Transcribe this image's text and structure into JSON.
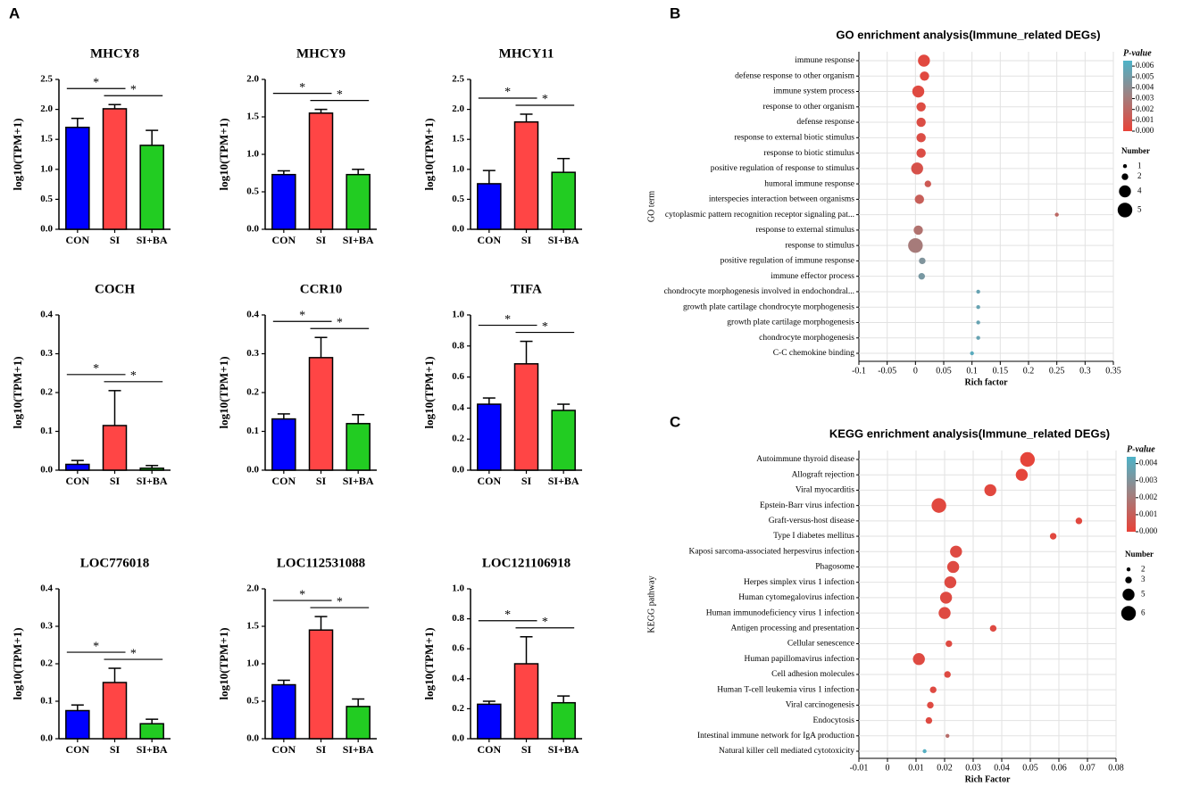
{
  "panel_labels": [
    "A",
    "B",
    "C"
  ],
  "chart_data": [
    {
      "type": "bar",
      "title": "MHCY8",
      "ylabel": "log10(TPM+1)",
      "categories": [
        "CON",
        "SI",
        "SI+BA"
      ],
      "values": [
        1.7,
        2.01,
        1.4
      ],
      "errors": [
        0.15,
        0.07,
        0.25
      ],
      "colors": [
        "#0000ff",
        "#ff4545",
        "#22cc22"
      ],
      "ylim": [
        0,
        2.5
      ],
      "yticks": [
        {
          "value": 0,
          "label": "0.0"
        },
        0.5,
        {
          "value": 1,
          "label": "1.0"
        },
        1.5,
        {
          "value": 2,
          "label": "2.0"
        },
        2.5
      ],
      "annotations": [
        "*",
        "*"
      ]
    },
    {
      "type": "bar",
      "title": "MHCY9",
      "ylabel": "log10(TPM+1)",
      "categories": [
        "CON",
        "SI",
        "SI+BA"
      ],
      "values": [
        0.73,
        1.55,
        0.73
      ],
      "errors": [
        0.05,
        0.05,
        0.07
      ],
      "colors": [
        "#0000ff",
        "#ff4545",
        "#22cc22"
      ],
      "ylim": [
        0,
        2
      ],
      "yticks": [
        {
          "value": 0,
          "label": "0.0"
        },
        0.5,
        {
          "value": 1,
          "label": "1.0"
        },
        1.5,
        {
          "value": 2,
          "label": "2.0"
        }
      ],
      "annotations": [
        "*",
        "*"
      ]
    },
    {
      "type": "bar",
      "title": "MHCY11",
      "ylabel": "log10(TPM+1)",
      "categories": [
        "CON",
        "SI",
        "SI+BA"
      ],
      "values": [
        0.76,
        1.79,
        0.95
      ],
      "errors": [
        0.22,
        0.13,
        0.23
      ],
      "colors": [
        "#0000ff",
        "#ff4545",
        "#22cc22"
      ],
      "ylim": [
        0,
        2.5
      ],
      "yticks": [
        {
          "value": 0,
          "label": "0.0"
        },
        0.5,
        {
          "value": 1,
          "label": "1.0"
        },
        1.5,
        {
          "value": 2,
          "label": "2.0"
        },
        2.5
      ],
      "annotations": [
        "*",
        "*"
      ]
    },
    {
      "type": "bar",
      "title": "COCH",
      "ylabel": "log10(TPM+1)",
      "categories": [
        "CON",
        "SI",
        "SI+BA"
      ],
      "values": [
        0.015,
        0.115,
        0.005
      ],
      "errors": [
        0.01,
        0.09,
        0.007
      ],
      "colors": [
        "#0000ff",
        "#ff4545",
        "#22cc22"
      ],
      "ylim": [
        0,
        0.4
      ],
      "yticks": [
        {
          "value": 0,
          "label": "0.0"
        },
        0.1,
        0.2,
        0.3,
        0.4
      ],
      "annotations": [
        "*",
        "*"
      ]
    },
    {
      "type": "bar",
      "title": "CCR10",
      "ylabel": "log10(TPM+1)",
      "categories": [
        "CON",
        "SI",
        "SI+BA"
      ],
      "values": [
        0.132,
        0.29,
        0.12
      ],
      "errors": [
        0.013,
        0.052,
        0.023
      ],
      "colors": [
        "#0000ff",
        "#ff4545",
        "#22cc22"
      ],
      "ylim": [
        0,
        0.4
      ],
      "yticks": [
        {
          "value": 0,
          "label": "0.0"
        },
        0.1,
        0.2,
        0.3,
        0.4
      ],
      "annotations": [
        "*",
        "*"
      ]
    },
    {
      "type": "bar",
      "title": "TIFA",
      "ylabel": "log10(TPM+1)",
      "categories": [
        "CON",
        "SI",
        "SI+BA"
      ],
      "values": [
        0.425,
        0.685,
        0.385
      ],
      "errors": [
        0.04,
        0.145,
        0.04
      ],
      "colors": [
        "#0000ff",
        "#ff4545",
        "#22cc22"
      ],
      "ylim": [
        0,
        1
      ],
      "yticks": [
        {
          "value": 0,
          "label": "0.0"
        },
        0.2,
        0.4,
        0.6,
        0.8,
        {
          "value": 1,
          "label": "1.0"
        }
      ],
      "annotations": [
        "*",
        "*"
      ]
    },
    {
      "type": "bar",
      "title": "LOC776018",
      "ylabel": "log10(TPM+1)",
      "categories": [
        "CON",
        "SI",
        "SI+BA"
      ],
      "values": [
        0.075,
        0.15,
        0.04
      ],
      "errors": [
        0.015,
        0.038,
        0.012
      ],
      "colors": [
        "#0000ff",
        "#ff4545",
        "#22cc22"
      ],
      "ylim": [
        0,
        0.4
      ],
      "yticks": [
        {
          "value": 0,
          "label": "0.0"
        },
        0.1,
        0.2,
        0.3,
        0.4
      ],
      "annotations": [
        "*",
        "*"
      ]
    },
    {
      "type": "bar",
      "title": "LOC112531088",
      "ylabel": "log10(TPM+1)",
      "categories": [
        "CON",
        "SI",
        "SI+BA"
      ],
      "values": [
        0.72,
        1.45,
        0.43
      ],
      "errors": [
        0.06,
        0.18,
        0.1
      ],
      "colors": [
        "#0000ff",
        "#ff4545",
        "#22cc22"
      ],
      "ylim": [
        0,
        2
      ],
      "yticks": [
        {
          "value": 0,
          "label": "0.0"
        },
        0.5,
        {
          "value": 1,
          "label": "1.0"
        },
        1.5,
        {
          "value": 2,
          "label": "2.0"
        }
      ],
      "annotations": [
        "*",
        "*"
      ]
    },
    {
      "type": "bar",
      "title": "LOC121106918",
      "ylabel": "log10(TPM+1)",
      "categories": [
        "CON",
        "SI",
        "SI+BA"
      ],
      "values": [
        0.23,
        0.5,
        0.24
      ],
      "errors": [
        0.02,
        0.18,
        0.045
      ],
      "colors": [
        "#0000ff",
        "#ff4545",
        "#22cc22"
      ],
      "ylim": [
        0,
        1
      ],
      "yticks": [
        {
          "value": 0,
          "label": "0.0"
        },
        0.2,
        0.4,
        0.6,
        0.8,
        {
          "value": 1,
          "label": "1.0"
        }
      ],
      "annotations": [
        "*",
        "*"
      ]
    },
    {
      "type": "bubble",
      "title": "GO enrichment analysis(Immune_related DEGs)",
      "xlabel": "Rich factor",
      "ylabel": "GO term",
      "grid": true,
      "categories": [
        "immune response",
        "defense response to other organism",
        "immune system process",
        "response to other organism",
        "defense response",
        "response to external biotic stimulus",
        "response to biotic stimulus",
        "positive regulation of response to stimulus",
        "humoral immune response",
        "interspecies interaction between organisms",
        "cytoplasmic pattern recognition receptor signaling pat...",
        "response to external stimulus",
        "response to stimulus",
        "positive regulation of immune response",
        "immune effector process",
        "chondrocyte morphogenesis involved in endochondral...",
        "growth plate cartilage chondrocyte morphogenesis",
        "growth plate cartilage morphogenesis",
        "chondrocyte morphogenesis",
        "C-C chemokine binding"
      ],
      "rich_factor": [
        0.015,
        0.016,
        0.005,
        0.01,
        0.01,
        0.01,
        0.01,
        0.003,
        0.022,
        0.007,
        0.25,
        0.005,
        0,
        0.012,
        0.011,
        0.111,
        0.111,
        0.111,
        0.111,
        0.1
      ],
      "p_value": [
        0.0003,
        0.0003,
        0.0004,
        0.0005,
        0.0006,
        0.0006,
        0.0006,
        0.0008,
        0.0012,
        0.0015,
        0.002,
        0.0025,
        0.003,
        0.0045,
        0.0048,
        0.0055,
        0.0055,
        0.0055,
        0.0055,
        0.006
      ],
      "number": [
        4,
        3,
        4,
        3,
        3,
        3,
        3,
        4,
        2,
        3,
        1,
        3,
        5,
        2,
        2,
        1,
        1,
        1,
        1,
        1
      ],
      "xlim": [
        -0.1,
        0.35
      ],
      "xticks": [
        -0.1,
        -0.05,
        0,
        0.05,
        0.1,
        0.15,
        0.2,
        0.25,
        0.3,
        0.35
      ],
      "color_title": "P-value",
      "clim": [
        0,
        0.0065
      ],
      "cticks": [
        0.006,
        0.005,
        0.004,
        0.003,
        0.002,
        0.001,
        {
          "value": 0,
          "label": "0.000"
        }
      ],
      "size_title": "Number",
      "size_ticks": [
        1,
        2,
        4,
        5
      ]
    },
    {
      "type": "bubble",
      "title": "KEGG enrichment analysis(Immune_related DEGs)",
      "xlabel": "Rich Factor",
      "ylabel": "KEGG pathway",
      "grid": true,
      "categories": [
        "Autoimmune thyroid disease",
        "Allograft rejection",
        "Viral myocarditis",
        "Epstein-Barr virus infection",
        "Graft-versus-host disease",
        "Type I diabetes mellitus",
        "Kaposi sarcoma-associated herpesvirus infection",
        "Phagosome",
        "Herpes simplex virus 1 infection",
        "Human cytomegalovirus infection",
        "Human immunodeficiency virus 1 infection",
        "Antigen processing and presentation",
        "Cellular senescence",
        "Human papillomavirus infection",
        "Cell adhesion molecules",
        "Human T-cell leukemia virus 1 infection",
        "Viral carcinogenesis",
        "Endocytosis",
        "Intestinal immune network for IgA production",
        "Natural killer cell mediated cytotoxicity"
      ],
      "rich_factor": [
        0.049,
        0.047,
        0.036,
        0.018,
        0.067,
        0.058,
        0.024,
        0.023,
        0.022,
        0.0205,
        0.02,
        0.037,
        0.0215,
        0.011,
        0.021,
        0.016,
        0.015,
        0.0145,
        0.021,
        0.013
      ],
      "p_value": [
        0.0001,
        0.0001,
        0.0002,
        0.0002,
        0.0002,
        0.0002,
        0.0003,
        0.0003,
        0.0003,
        0.0003,
        0.0003,
        0.0003,
        0.0003,
        0.0003,
        0.0003,
        0.0003,
        0.0003,
        0.0003,
        0.0015,
        0.0042
      ],
      "number": [
        6,
        5,
        5,
        6,
        3,
        3,
        5,
        5,
        5,
        5,
        5,
        3,
        3,
        5,
        3,
        3,
        3,
        3,
        2,
        2
      ],
      "xlim": [
        -0.01,
        0.08
      ],
      "xticks": [
        -0.01,
        0,
        0.01,
        0.02,
        0.03,
        0.04,
        0.05,
        0.06,
        0.07,
        0.08
      ],
      "color_title": "P-value",
      "clim": [
        0,
        0.0044
      ],
      "cticks": [
        0.004,
        0.003,
        0.002,
        0.001,
        {
          "value": 0,
          "label": "0.000"
        }
      ],
      "size_title": "Number",
      "size_ticks": [
        2,
        3,
        5,
        6
      ]
    }
  ]
}
